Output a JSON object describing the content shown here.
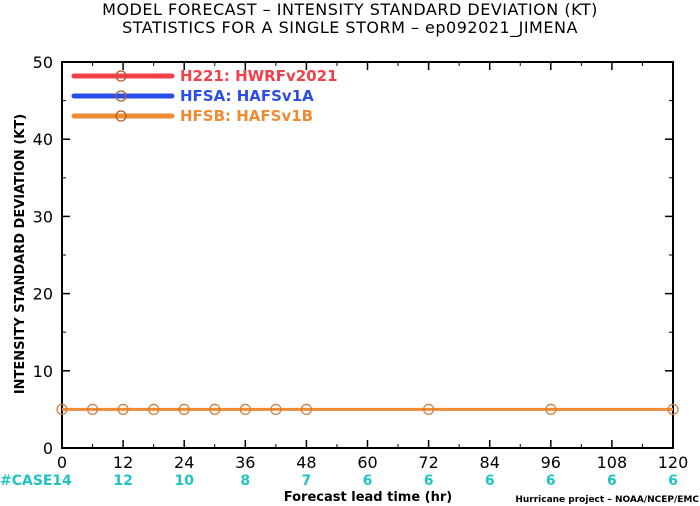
{
  "header": {
    "title_line1": "MODEL FORECAST – INTENSITY STANDARD DEVIATION (KT)",
    "title_line2": "STATISTICS FOR A SINGLE STORM – ep092021_JIMENA"
  },
  "chart_data": {
    "type": "line",
    "title": "MODEL FORECAST – INTENSITY STANDARD DEVIATION (KT)",
    "subtitle": "STATISTICS FOR A SINGLE STORM – ep092021_JIMENA",
    "xlabel": "Forecast lead time (hr)",
    "ylabel": "INTENSITY STANDARD DEVIATION (KT)",
    "xlim": [
      0,
      120
    ],
    "ylim": [
      0,
      50
    ],
    "x_ticks": [
      "0",
      "12",
      "24",
      "36",
      "48",
      "60",
      "72",
      "84",
      "96",
      "108",
      "120"
    ],
    "y_ticks": [
      "0",
      "10",
      "20",
      "30",
      "40",
      "50"
    ],
    "legend_position": "top-left",
    "grid": false,
    "series": [
      {
        "name": "H221: HWRFv2021",
        "color": "#f0404a",
        "x": [],
        "values": []
      },
      {
        "name": "HFSA: HAFSv1A",
        "color": "#2c4ee8",
        "x": [],
        "values": []
      },
      {
        "name": "HFSB: HAFSv1B",
        "color": "#ef8a35",
        "x": [
          0,
          6,
          12,
          18,
          24,
          30,
          36,
          42,
          48,
          72,
          96,
          120
        ],
        "values": [
          5,
          5,
          5,
          5,
          5,
          5,
          5,
          5,
          5,
          5,
          5,
          5
        ]
      }
    ],
    "case_counts": {
      "label": "#CASE",
      "color": "#1fc4c4",
      "hours": [
        0,
        12,
        24,
        36,
        48,
        60,
        72,
        84,
        96,
        108,
        120
      ],
      "values": [
        "14",
        "12",
        "10",
        "8",
        "7",
        "6",
        "6",
        "6",
        "6",
        "6",
        "6"
      ]
    }
  },
  "credit": "Hurricane project – NOAA/NCEP/EMC"
}
